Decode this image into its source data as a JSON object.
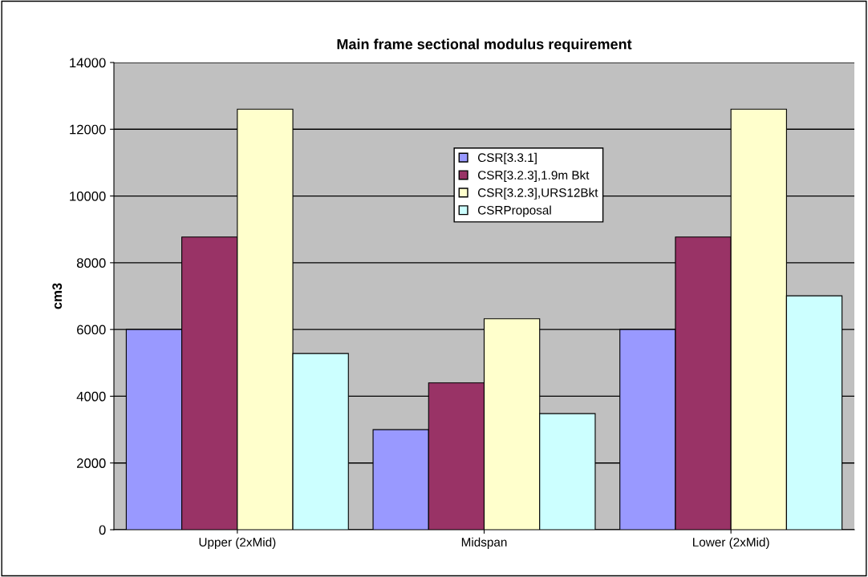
{
  "chart_data": {
    "type": "bar",
    "title": "Main frame sectional modulus requirement",
    "ylabel": "cm3",
    "categories": [
      "Upper (2xMid)",
      "Midspan",
      "Lower (2xMid)"
    ],
    "series": [
      {
        "name": "CSR[3.3.1]",
        "color": "#9999ff",
        "values": [
          6000,
          3000,
          6000
        ]
      },
      {
        "name": "CSR[3.2.3],1.9m Bkt",
        "color": "#993366",
        "values": [
          8770,
          4400,
          8770
        ]
      },
      {
        "name": "CSR[3.2.3],URS12Bkt",
        "color": "#ffffcc",
        "values": [
          12600,
          6320,
          12600
        ]
      },
      {
        "name": "CSRProposal",
        "color": "#ccffff",
        "values": [
          5280,
          3480,
          7010
        ]
      }
    ],
    "ylim": [
      0,
      14000
    ],
    "yticks": [
      0,
      2000,
      4000,
      6000,
      8000,
      10000,
      12000,
      14000
    ],
    "grid": "y",
    "legend": "top"
  }
}
